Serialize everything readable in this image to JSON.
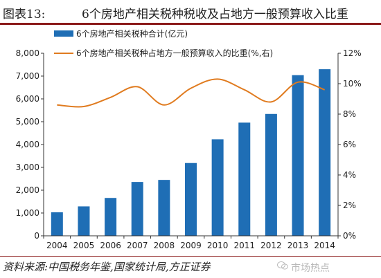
{
  "header": {
    "label": "图表13:",
    "title": "6个房地产相关税种税收及占地方一般预算收入比重"
  },
  "source_text": "资料来源:中国税务年鉴,国家统计局,方正证券",
  "watermark": {
    "text": "市场热点",
    "icon": "wechat-icon"
  },
  "chart_data": {
    "type": "bar",
    "title": "",
    "categories": [
      "2004",
      "2005",
      "2006",
      "2007",
      "2008",
      "2009",
      "2010",
      "2011",
      "2012",
      "2013",
      "2014"
    ],
    "left_axis": {
      "ylim": [
        0,
        8000
      ],
      "ticks": [
        "0",
        "1,000",
        "2,000",
        "3,000",
        "4,000",
        "5,000",
        "6,000",
        "7,000",
        "8,000"
      ]
    },
    "right_axis": {
      "ylim": [
        0,
        12
      ],
      "ticks": [
        "0%",
        "2%",
        "4%",
        "6%",
        "8%",
        "10%",
        "12%"
      ]
    },
    "series": [
      {
        "name": "6个房地产相关税种合计(亿元)",
        "type": "bar",
        "axis": "left",
        "color": "#1f6eb5",
        "values": [
          1030,
          1290,
          1660,
          2360,
          2450,
          3190,
          4230,
          4960,
          5340,
          7040,
          7300
        ]
      },
      {
        "name": "6个房地产相关税种占地方一般预算收入的比重(%,右)",
        "type": "line",
        "axis": "right",
        "color": "#e07b1f",
        "values": [
          8.6,
          8.5,
          9.1,
          9.8,
          8.6,
          9.7,
          10.3,
          9.6,
          8.8,
          10.1,
          9.6
        ]
      }
    ],
    "legend_position": "top-left",
    "grid": false
  }
}
